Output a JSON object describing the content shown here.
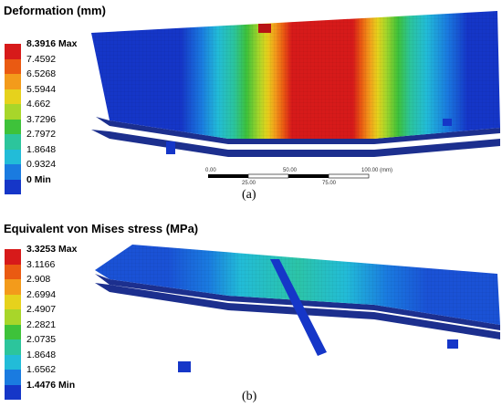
{
  "panel_a": {
    "title": "Deformation (mm)",
    "legend": [
      {
        "label": "8.3916 Max",
        "color": "#d71a1a"
      },
      {
        "label": "7.4592",
        "color": "#ea5a12"
      },
      {
        "label": "6.5268",
        "color": "#f39b1b"
      },
      {
        "label": "5.5944",
        "color": "#e6d21c"
      },
      {
        "label": "4.662",
        "color": "#a8d62a"
      },
      {
        "label": "3.7296",
        "color": "#3ec23a"
      },
      {
        "label": "2.7972",
        "color": "#2cc59c"
      },
      {
        "label": "1.8648",
        "color": "#22bcd8"
      },
      {
        "label": "0.9324",
        "color": "#1a7be0"
      },
      {
        "label": "0 Min",
        "color": "#1536c8"
      }
    ],
    "scale_bar": {
      "ticks_top": [
        "0.00",
        "50.00",
        "100.00 (mm)"
      ],
      "ticks_bottom": [
        "25.00",
        "75.00"
      ]
    },
    "caption": "(a)"
  },
  "panel_b": {
    "title": "Equivalent von Mises stress (MPa)",
    "legend": [
      {
        "label": "3.3253 Max",
        "color": "#d71a1a"
      },
      {
        "label": "3.1166",
        "color": "#ea5a12"
      },
      {
        "label": "2.908",
        "color": "#f39b1b"
      },
      {
        "label": "2.6994",
        "color": "#e6d21c"
      },
      {
        "label": "2.4907",
        "color": "#a8d62a"
      },
      {
        "label": "2.2821",
        "color": "#3ec23a"
      },
      {
        "label": "2.0735",
        "color": "#2cc59c"
      },
      {
        "label": "1.8648",
        "color": "#22bcd8"
      },
      {
        "label": "1.6562",
        "color": "#1a7be0"
      },
      {
        "label": "1.4476 Min",
        "color": "#1536c8"
      }
    ],
    "caption": "(b)"
  }
}
